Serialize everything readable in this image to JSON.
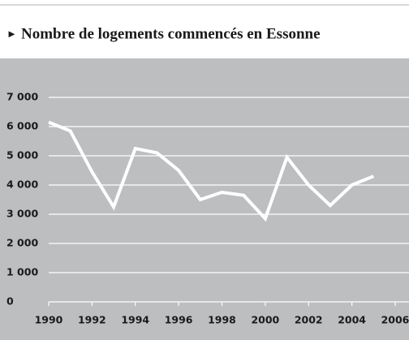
{
  "chart_data": {
    "type": "line",
    "title": "Nombre de logements commencés en Essonne",
    "x": [
      1990,
      1991,
      1992,
      1993,
      1994,
      1995,
      1996,
      1997,
      1998,
      1999,
      2000,
      2001,
      2002,
      2003,
      2004,
      2005
    ],
    "series": [
      {
        "color": "#ffffff",
        "values": [
          6150,
          5850,
          4450,
          3250,
          5250,
          5100,
          4500,
          3500,
          3750,
          3650,
          2850,
          4950,
          4000,
          3300,
          4000,
          4300
        ]
      }
    ],
    "xlim": [
      1990,
      2006
    ],
    "xticks": [
      1990,
      1992,
      1994,
      1996,
      1998,
      2000,
      2002,
      2004,
      2006
    ],
    "ylim": [
      0,
      7000
    ],
    "yticks": [
      0,
      {
        "value": 1000,
        "label": "1 000"
      },
      {
        "value": 2000,
        "label": "2 000"
      },
      {
        "value": 3000,
        "label": "3 000"
      },
      {
        "value": 4000,
        "label": "4 000"
      },
      {
        "value": 5000,
        "label": "5 000"
      },
      {
        "value": 6000,
        "label": "6 000"
      },
      {
        "value": 7000,
        "label": "7 000"
      }
    ],
    "grid": true,
    "background": "#bcbec0"
  }
}
